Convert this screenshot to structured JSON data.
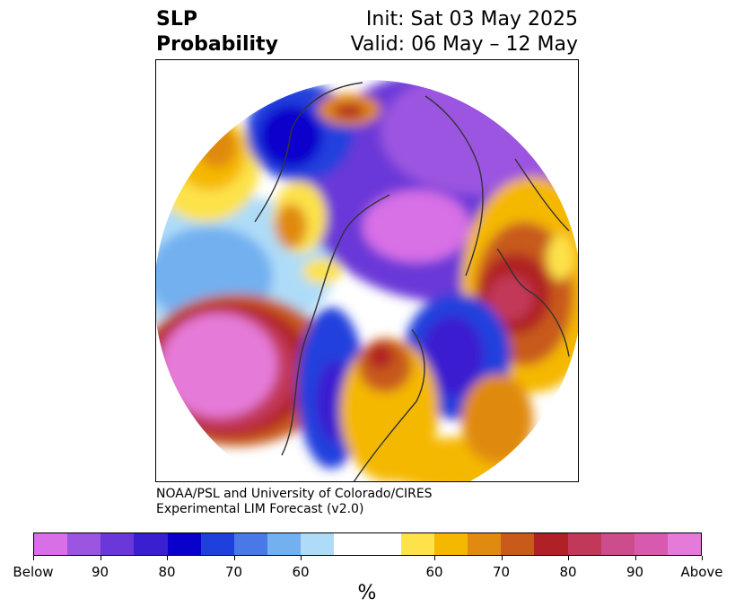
{
  "title": {
    "left_line1": "SLP",
    "left_line2": "Probability",
    "right_line1": "Init: Sat 03 May 2025",
    "right_line2": "Valid: 06 May – 12 May"
  },
  "credit": {
    "line1": "NOAA/PSL and University of Colorado/CIRES",
    "line2": "Experimental LIM Forecast (v2.0)"
  },
  "colorbar": {
    "colors": [
      "#d86fe6",
      "#9b55e0",
      "#6a38d8",
      "#3a1fd0",
      "#0a00cc",
      "#2040dd",
      "#4a78e6",
      "#72b0f0",
      "#aedcf8",
      "#ffffff",
      "#ffffff",
      "#fde24a",
      "#f5b800",
      "#e08a10",
      "#c85a1a",
      "#b02024",
      "#c23858",
      "#cc4c8c",
      "#d85aae",
      "#e57ad8"
    ],
    "tick_labels": [
      "Below",
      "90",
      "80",
      "70",
      "60",
      "60",
      "70",
      "80",
      "90",
      "Above"
    ],
    "unit": "%"
  },
  "map": {
    "projection": "polar-stereographic",
    "regions": [
      {
        "name": "north-pacific-high",
        "category": "above",
        "color": "#e57ad8"
      },
      {
        "name": "north-pacific-high-ring",
        "category": "above-80",
        "color": "#c23858"
      },
      {
        "name": "western-us-trough",
        "category": "below-80",
        "color": "#2040dd"
      },
      {
        "name": "central-us-high",
        "category": "above-70",
        "color": "#c85a1a"
      },
      {
        "name": "north-atlantic-low",
        "category": "below-80",
        "color": "#0a00cc"
      },
      {
        "name": "europe-high",
        "category": "above-80",
        "color": "#c23858"
      },
      {
        "name": "arctic-low",
        "category": "below-90",
        "color": "#9b55e0"
      },
      {
        "name": "siberia-low-core",
        "category": "below",
        "color": "#d86fe6"
      },
      {
        "name": "east-asia-high",
        "category": "above-70",
        "color": "#e08a10"
      },
      {
        "name": "greenland-high",
        "category": "above-70",
        "color": "#c85a1a"
      }
    ]
  }
}
